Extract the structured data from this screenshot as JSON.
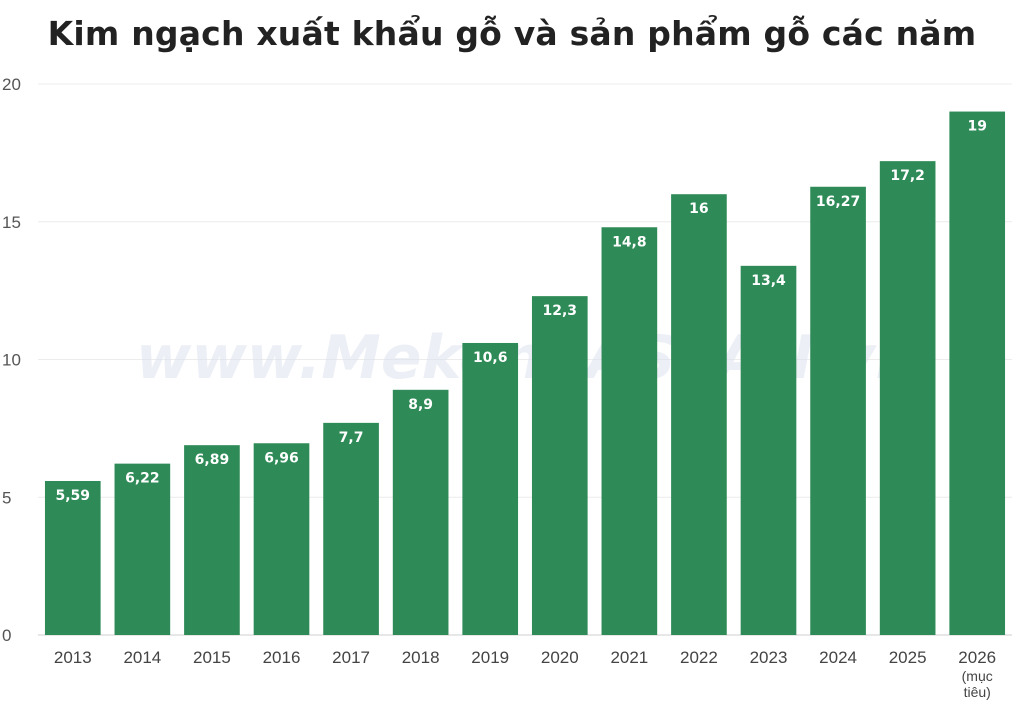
{
  "chart_data": {
    "type": "bar",
    "title": "Kim ngạch xuất khẩu gỗ và sản phẩm gỗ các năm",
    "categories": [
      "2013",
      "2014",
      "2015",
      "2016",
      "2017",
      "2018",
      "2019",
      "2020",
      "2021",
      "2022",
      "2023",
      "2024",
      "2025",
      "2026 (mục tiêu)"
    ],
    "values": [
      5.59,
      6.22,
      6.89,
      6.96,
      7.7,
      8.9,
      10.6,
      12.3,
      14.8,
      16,
      13.4,
      16.27,
      17.2,
      19
    ],
    "value_labels": [
      "5,59",
      "6,22",
      "6,89",
      "6,96",
      "7,7",
      "8,9",
      "10,6",
      "12,3",
      "14,8",
      "16",
      "13,4",
      "16,27",
      "17,2",
      "19"
    ],
    "y_ticks": [
      "0",
      "5",
      "10",
      "15",
      "20"
    ],
    "ylim": [
      0,
      20
    ],
    "xlabel": "",
    "ylabel": "",
    "grid": true,
    "bar_color": "#2e8b57",
    "watermark": "www.MekongASEAN.vn"
  }
}
